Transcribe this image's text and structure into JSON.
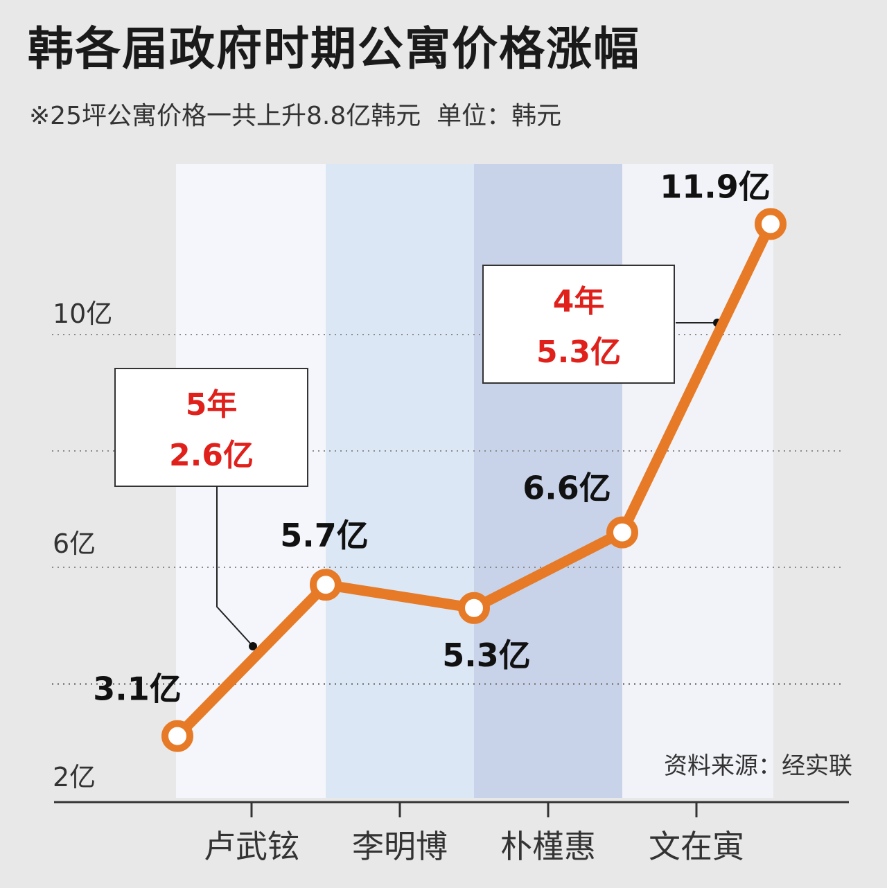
{
  "title": "韩各届政府时期公寓价格涨幅",
  "subtitle": "※25坪公寓价格一共上升8.8亿韩元  单位：韩元",
  "source": "资料来源：经实联",
  "colors": {
    "line": "#e77a26",
    "annotation_text": "#e0201b",
    "band_1": "#f4f6fb",
    "band_2": "#dbe7f5",
    "band_3": "#c8d3e9",
    "band_4": "#f2f3f8"
  },
  "chart_data": {
    "type": "line",
    "title": "韩各届政府时期公寓价格涨幅",
    "categories": [
      "卢武铉",
      "李明博",
      "朴槿惠",
      "文在寅"
    ],
    "points": [
      {
        "x": 0,
        "y": 3.1,
        "label": "3.1亿"
      },
      {
        "x": 1,
        "y": 5.7,
        "label": "5.7亿"
      },
      {
        "x": 2,
        "y": 5.3,
        "label": "5.3亿"
      },
      {
        "x": 3,
        "y": 6.6,
        "label": "6.6亿"
      },
      {
        "x": 4,
        "y": 11.9,
        "label": "11.9亿"
      }
    ],
    "yticks": [
      {
        "value": 2,
        "label": "2亿"
      },
      {
        "value": 6,
        "label": "6亿"
      },
      {
        "value": 10,
        "label": "10亿"
      }
    ],
    "gridlines": [
      4,
      6,
      8,
      10
    ],
    "ylim": [
      1.5,
      12.5
    ],
    "grid": true,
    "annotations": [
      {
        "line1": "5年",
        "line2": "2.6亿",
        "segment": 0
      },
      {
        "line1": "4年",
        "line2": "5.3亿",
        "segment": 3
      }
    ]
  }
}
